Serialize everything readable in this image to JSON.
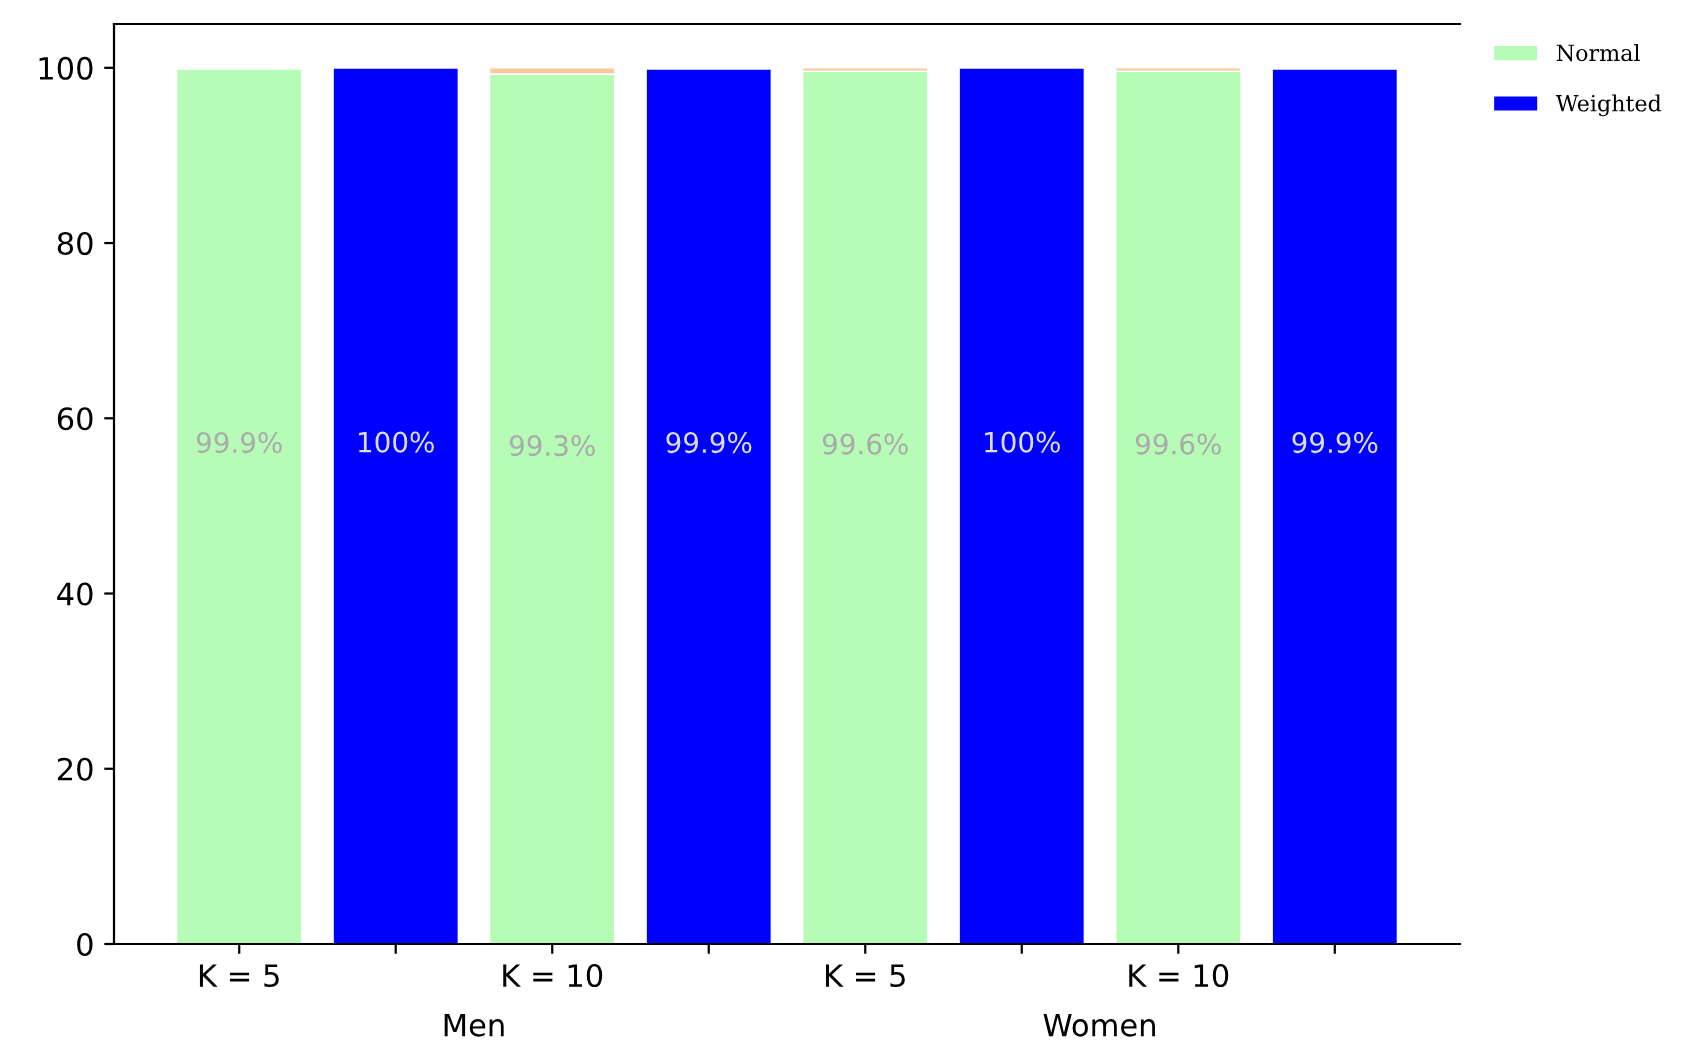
{
  "chart_data": {
    "type": "bar",
    "stacked": true,
    "categories": [
      "K = 5",
      null,
      "K = 10",
      null,
      "K = 5",
      null,
      "K = 10",
      null
    ],
    "series": [
      {
        "name": "Normal",
        "color": "#b6fbb6",
        "values": [
          99.9,
          null,
          99.3,
          null,
          99.6,
          null,
          99.6,
          null
        ],
        "value_labels": [
          "99.9%",
          null,
          "99.3%",
          null,
          "99.6%",
          null,
          "99.6%",
          null
        ]
      },
      {
        "name": "Weighted",
        "color": "#0000ff",
        "values": [
          null,
          100,
          null,
          99.9,
          null,
          100,
          null,
          99.9
        ],
        "value_labels": [
          null,
          "100%",
          null,
          "99.9%",
          null,
          "100%",
          null,
          "99.9%"
        ]
      },
      {
        "color": "#f9c89b",
        "values": [
          null,
          null,
          0.7,
          null,
          0.4,
          null,
          0.4,
          null
        ]
      }
    ],
    "ylim": [
      0,
      105
    ],
    "yticks": [
      0,
      20,
      40,
      60,
      80,
      100
    ],
    "annotations": [
      "Men",
      "Women"
    ],
    "legend": "top right",
    "grid": false
  }
}
